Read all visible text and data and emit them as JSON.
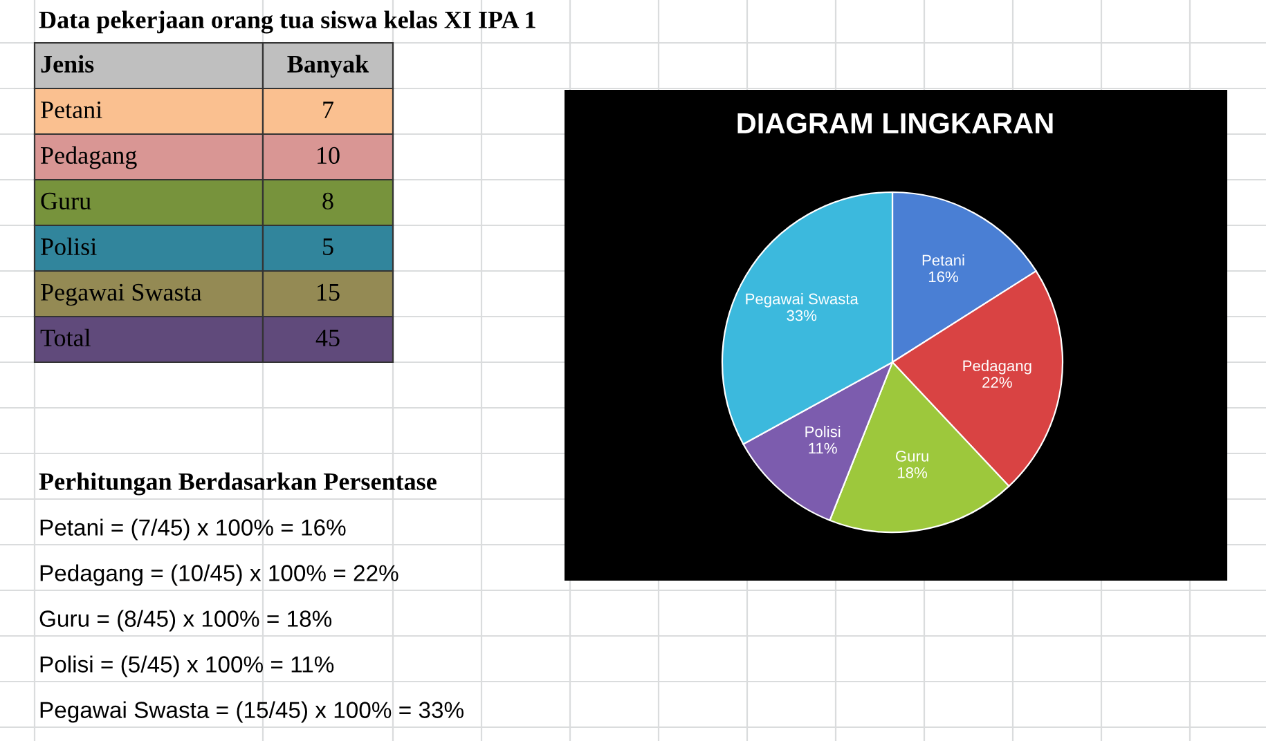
{
  "chart_data": {
    "type": "pie",
    "title": "DIAGRAM LINGKARAN",
    "categories": [
      "Petani",
      "Pedagang",
      "Guru",
      "Polisi",
      "Pegawai Swasta"
    ],
    "values": [
      16,
      22,
      18,
      11,
      33
    ],
    "colors": [
      "#4a7fd4",
      "#d94343",
      "#9dc83c",
      "#7c5cae",
      "#3cb9dd"
    ],
    "value_labels": [
      "16%",
      "22%",
      "18%",
      "11%",
      "33%"
    ],
    "legend": false,
    "annotations": [
      "Data pekerjaan orang tua siswa kelas XI IPA 1",
      "Jenis",
      "Banyak",
      "Petani",
      "7",
      "Pedagang",
      "10",
      "Guru",
      "8",
      "Polisi",
      "5",
      "Pegawai Swasta",
      "15",
      "Total",
      "45",
      "Perhitungan Berdasarkan Persentase",
      "Petani = (7/45) x 100% = 16%",
      "Pedagang = (10/45) x 100% = 22%",
      "Guru = (8/45) x 100% = 18%",
      "Polisi = (5/45) x 100% = 11%",
      "Pegawai Swasta = (15/45) x 100% = 33%"
    ]
  }
}
